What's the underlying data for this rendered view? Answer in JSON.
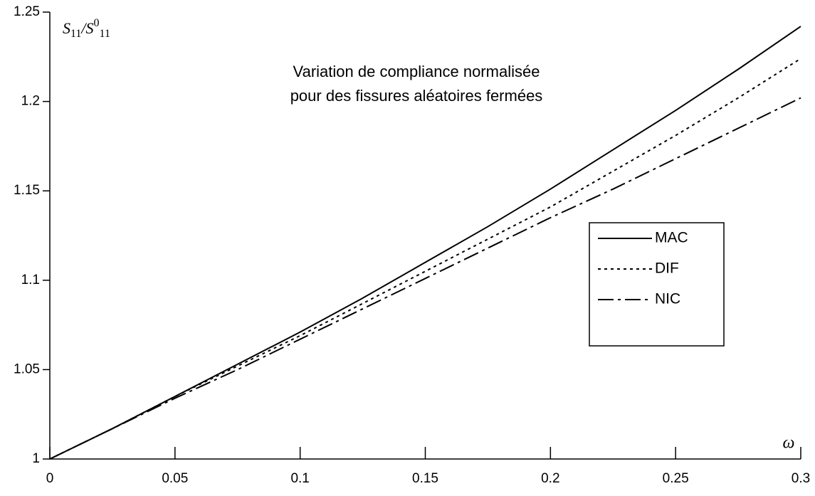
{
  "chart_data": {
    "type": "line",
    "title": [
      "Variation de compliance normalisée",
      "pour des fissures aléatoires fermées"
    ],
    "xlabel": "ω",
    "ylabel": [
      "S",
      "11",
      "/S",
      "0",
      "11"
    ],
    "x": [
      0,
      0.025,
      0.05,
      0.075,
      0.1,
      0.125,
      0.15,
      0.175,
      0.2,
      0.225,
      0.25,
      0.275,
      0.3
    ],
    "series": [
      {
        "name": "MAC",
        "color": "#000000",
        "dash": "solid",
        "values": [
          1,
          1.017,
          1.035,
          1.053,
          1.071,
          1.09,
          1.11,
          1.13,
          1.151,
          1.173,
          1.195,
          1.218,
          1.242
        ]
      },
      {
        "name": "DIF",
        "color": "#000000",
        "dash": "dotted",
        "values": [
          1,
          1.017,
          1.035,
          1.052,
          1.069,
          1.087,
          1.105,
          1.123,
          1.141,
          1.161,
          1.181,
          1.202,
          1.224
        ]
      },
      {
        "name": "NIC",
        "color": "#000000",
        "dash": "dashdot",
        "values": [
          1,
          1.017,
          1.034,
          1.05,
          1.067,
          1.084,
          1.101,
          1.118,
          1.135,
          1.151,
          1.168,
          1.185,
          1.202
        ]
      }
    ],
    "xlim": [
      0,
      0.3
    ],
    "xticks": [
      0,
      0.05,
      0.1,
      0.15,
      0.2,
      0.25,
      0.3
    ],
    "ylim": [
      1,
      1.25
    ],
    "yticks": [
      1,
      1.05,
      1.1,
      1.15,
      1.2,
      1.25
    ],
    "grid": false,
    "legend": "right"
  }
}
